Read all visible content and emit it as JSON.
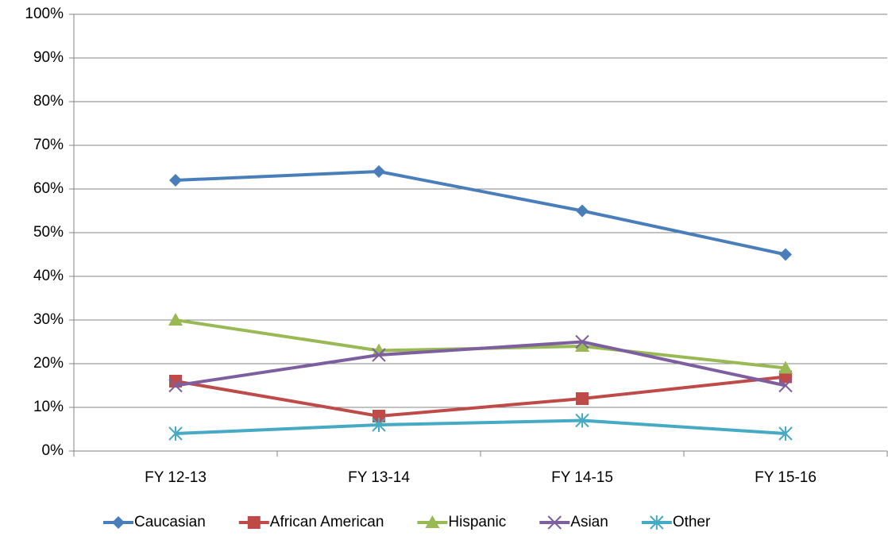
{
  "chart_data": {
    "type": "line",
    "categories": [
      "FY 12-13",
      "FY 13-14",
      "FY 14-15",
      "FY 15-16"
    ],
    "series": [
      {
        "name": "Caucasian",
        "color": "#4a7ebb",
        "marker": "diamond",
        "values": [
          62,
          64,
          55,
          45
        ]
      },
      {
        "name": "African American",
        "color": "#be4b48",
        "marker": "square",
        "values": [
          16,
          8,
          12,
          17
        ]
      },
      {
        "name": "Hispanic",
        "color": "#98b954",
        "marker": "triangle",
        "values": [
          30,
          23,
          24,
          19
        ]
      },
      {
        "name": "Asian",
        "color": "#7d5fa0",
        "marker": "x",
        "values": [
          15,
          22,
          25,
          15
        ]
      },
      {
        "name": "Other",
        "color": "#46aac5",
        "marker": "star",
        "values": [
          4,
          6,
          7,
          4
        ]
      }
    ],
    "ylim": [
      0,
      100
    ],
    "yticks": [
      {
        "value": 0,
        "label": "0%"
      },
      {
        "value": 10,
        "label": "10%"
      },
      {
        "value": 20,
        "label": "20%"
      },
      {
        "value": 30,
        "label": "30%"
      },
      {
        "value": 40,
        "label": "40%"
      },
      {
        "value": 50,
        "label": "50%"
      },
      {
        "value": 60,
        "label": "60%"
      },
      {
        "value": 70,
        "label": "70%"
      },
      {
        "value": 80,
        "label": "80%"
      },
      {
        "value": 90,
        "label": "90%"
      },
      {
        "value": 100,
        "label": "100%"
      }
    ],
    "grid": true,
    "legend": "bottom"
  }
}
